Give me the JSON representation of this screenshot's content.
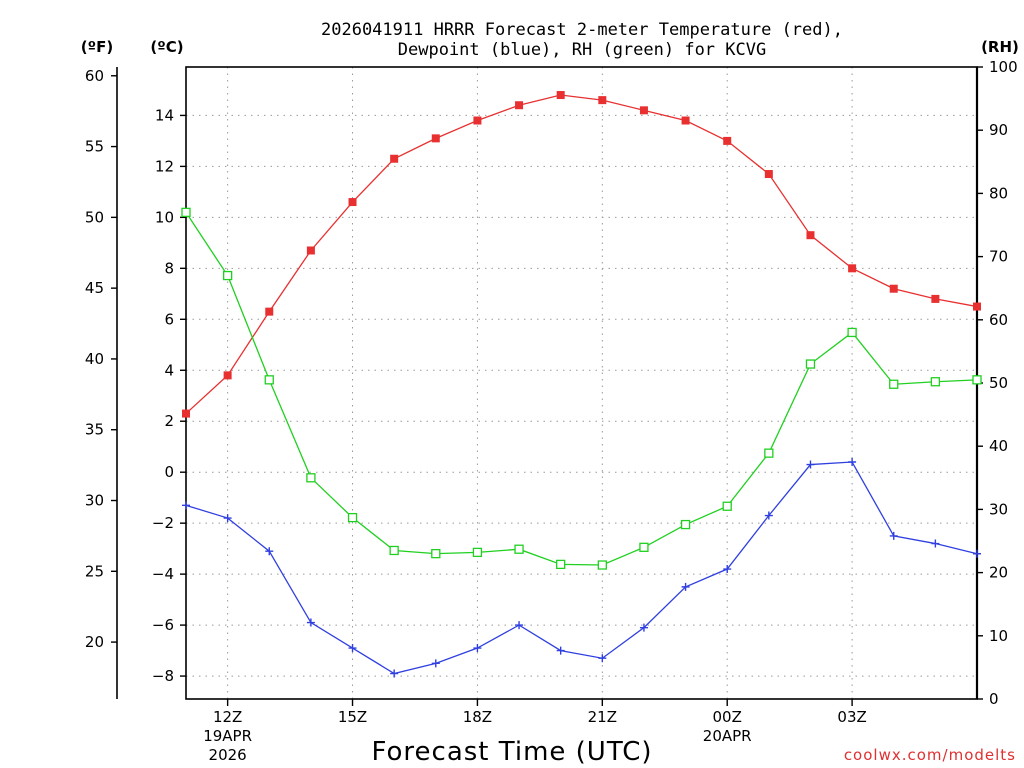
{
  "chart_data": {
    "type": "line",
    "title_line1": "2026041911 HRRR Forecast 2-meter Temperature (red),",
    "title_line2": "Dewpoint (blue), RH (green) for KCVG",
    "xlabel": "Forecast Time (UTC)",
    "credit": "coolwx.com/modelts",
    "units": {
      "f": "(ºF)",
      "c": "(ºC)",
      "rh": "(RH)"
    },
    "x_hours": [
      11,
      12,
      13,
      14,
      15,
      16,
      17,
      18,
      19,
      20,
      21,
      22,
      23,
      24,
      25,
      26,
      27,
      28,
      29,
      30
    ],
    "x_range": [
      11,
      30
    ],
    "x_ticks": [
      {
        "hour": 12,
        "label": "12Z",
        "sub1": "19APR",
        "sub2": "2026"
      },
      {
        "hour": 15,
        "label": "15Z",
        "sub1": "",
        "sub2": ""
      },
      {
        "hour": 18,
        "label": "18Z",
        "sub1": "",
        "sub2": ""
      },
      {
        "hour": 21,
        "label": "21Z",
        "sub1": "",
        "sub2": ""
      },
      {
        "hour": 24,
        "label": "00Z",
        "sub1": "20APR",
        "sub2": ""
      },
      {
        "hour": 27,
        "label": "03Z",
        "sub1": "",
        "sub2": ""
      }
    ],
    "c_range": [
      -8.9,
      15.9
    ],
    "c_ticks": [
      "14",
      "12",
      "10",
      "8",
      "6",
      "4",
      "2",
      "0",
      "−2",
      "−4",
      "−6",
      "−8"
    ],
    "c_tick_values": [
      14,
      12,
      10,
      8,
      6,
      4,
      2,
      0,
      -2,
      -4,
      -6,
      -8
    ],
    "f_ticks": [
      "60",
      "55",
      "50",
      "45",
      "40",
      "35",
      "30",
      "25",
      "20"
    ],
    "f_tick_values": [
      60,
      55,
      50,
      45,
      40,
      35,
      30,
      25,
      20
    ],
    "rh_range": [
      0,
      100
    ],
    "rh_ticks": [
      "100",
      "90",
      "80",
      "70",
      "60",
      "50",
      "40",
      "30",
      "20",
      "10",
      "0"
    ],
    "rh_tick_values": [
      100,
      90,
      80,
      70,
      60,
      50,
      40,
      30,
      20,
      10,
      0
    ],
    "series": [
      {
        "name": "2-meter Temperature",
        "axis": "c",
        "color": "#e83030",
        "marker": "filled-square",
        "values": [
          2.3,
          3.8,
          6.3,
          8.7,
          10.6,
          12.3,
          13.1,
          13.8,
          14.4,
          14.8,
          14.6,
          14.2,
          13.8,
          13.0,
          11.7,
          9.3,
          8.0,
          7.2,
          6.8,
          6.5
        ]
      },
      {
        "name": "Dewpoint",
        "axis": "c",
        "color": "#3040e0",
        "marker": "plus",
        "values": [
          -1.3,
          -1.8,
          -3.1,
          -5.9,
          -6.9,
          -7.9,
          -7.5,
          -6.9,
          -6.0,
          -7.0,
          -7.3,
          -6.1,
          -4.5,
          -3.8,
          -1.7,
          0.3,
          0.4,
          -2.5,
          -2.8,
          -3.2
        ]
      },
      {
        "name": "RH",
        "axis": "rh",
        "color": "#20d020",
        "marker": "open-square",
        "values": [
          77,
          67,
          50.5,
          35,
          28.7,
          23.5,
          23,
          23.2,
          23.7,
          21.3,
          21.2,
          24,
          27.6,
          30.5,
          38.9,
          53,
          58,
          49.8,
          50.2,
          50.5
        ]
      }
    ]
  }
}
